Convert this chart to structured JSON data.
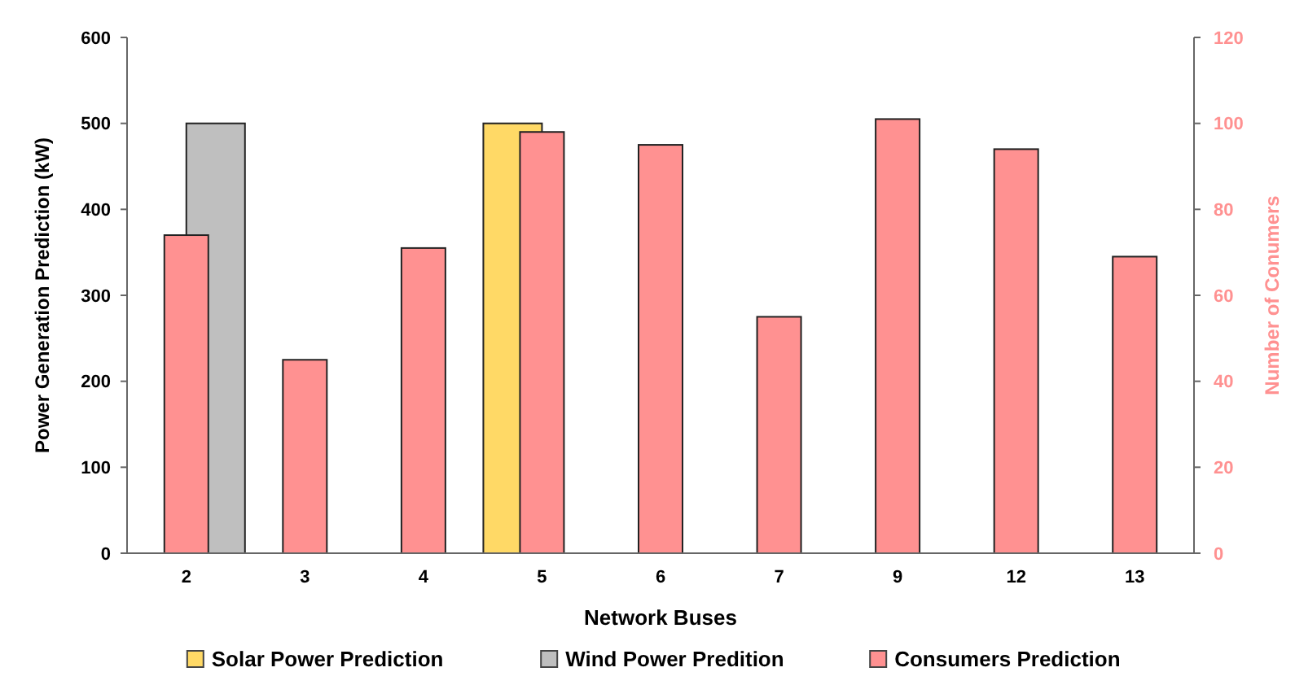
{
  "chart_data": {
    "type": "bar",
    "xlabel": "Network Buses",
    "ylabel": "Power Generation Prediction (kW)",
    "y2label": "Number of Conumers",
    "categories": [
      "2",
      "3",
      "4",
      "5",
      "6",
      "7",
      "9",
      "12",
      "13"
    ],
    "series": [
      {
        "name": "Solar Power Prediction",
        "color": "#ffd966",
        "values": [
          null,
          null,
          null,
          500,
          null,
          null,
          null,
          null,
          null
        ]
      },
      {
        "name": "Wind Power Predition",
        "color": "#bfbfbf",
        "values": [
          500,
          null,
          null,
          null,
          null,
          null,
          null,
          null,
          null
        ]
      },
      {
        "name": "Consumers Prediction",
        "color": "#ff9191",
        "axis": "y2",
        "values": [
          74,
          45,
          71,
          98,
          95,
          55,
          101,
          94,
          69
        ]
      }
    ],
    "ylim": [
      0,
      600
    ],
    "yticks": [
      0,
      100,
      200,
      300,
      400,
      500,
      600
    ],
    "y2lim": [
      0,
      120
    ],
    "y2ticks": [
      0,
      20,
      40,
      60,
      80,
      100,
      120
    ],
    "grid": false,
    "legend": "bottom"
  }
}
